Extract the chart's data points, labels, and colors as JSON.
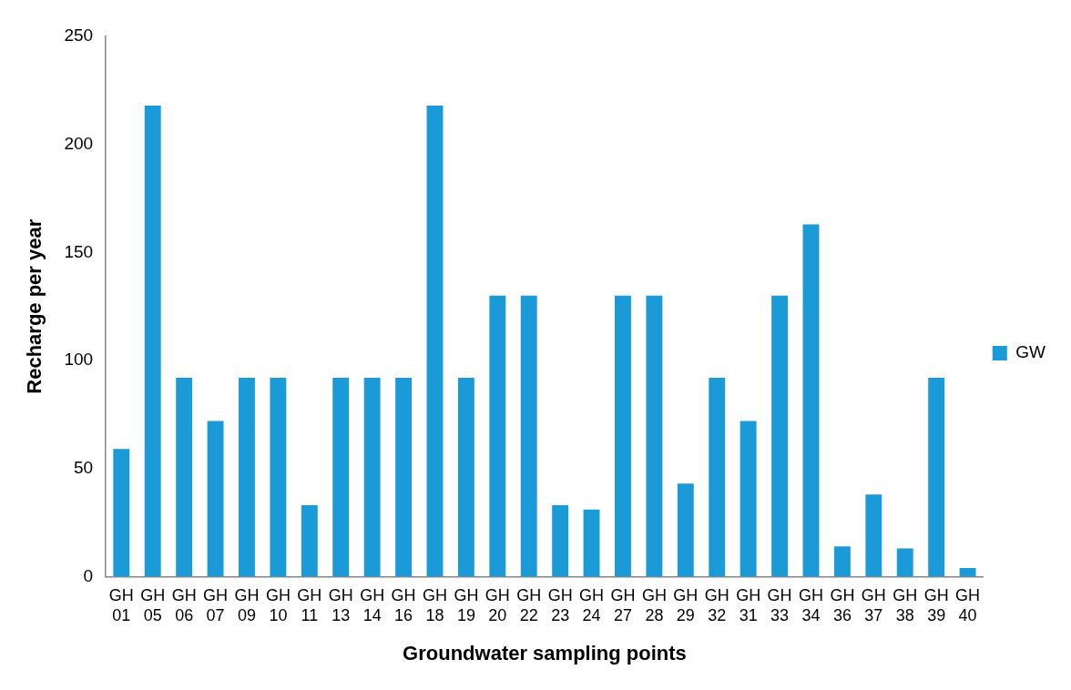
{
  "chart_data": {
    "type": "bar",
    "xlabel": "Groundwater sampling points",
    "ylabel": "Recharge per year",
    "categories": [
      "GH 01",
      "GH 05",
      "GH 06",
      "GH 07",
      "GH 09",
      "GH 10",
      "GH 11",
      "GH 13",
      "GH 14",
      "GH 16",
      "GH 18",
      "GH 19",
      "GH 20",
      "GH 22",
      "GH 23",
      "GH 24",
      "GH 27",
      "GH 28",
      "GH 29",
      "GH 32",
      "GH 31",
      "GH 33",
      "GH 34",
      "GH 36",
      "GH 37",
      "GH 38",
      "GH 39",
      "GH 40"
    ],
    "series": [
      {
        "name": "GW",
        "color": "#1a9ad6",
        "values": [
          59,
          218,
          92,
          72,
          92,
          92,
          33,
          92,
          92,
          92,
          218,
          92,
          130,
          130,
          33,
          31,
          130,
          130,
          43,
          92,
          72,
          130,
          163,
          14,
          38,
          13,
          92,
          4
        ]
      }
    ],
    "ylim": [
      0,
      250
    ],
    "yticks": [
      0,
      50,
      100,
      150,
      200,
      250
    ],
    "legend": "right"
  }
}
